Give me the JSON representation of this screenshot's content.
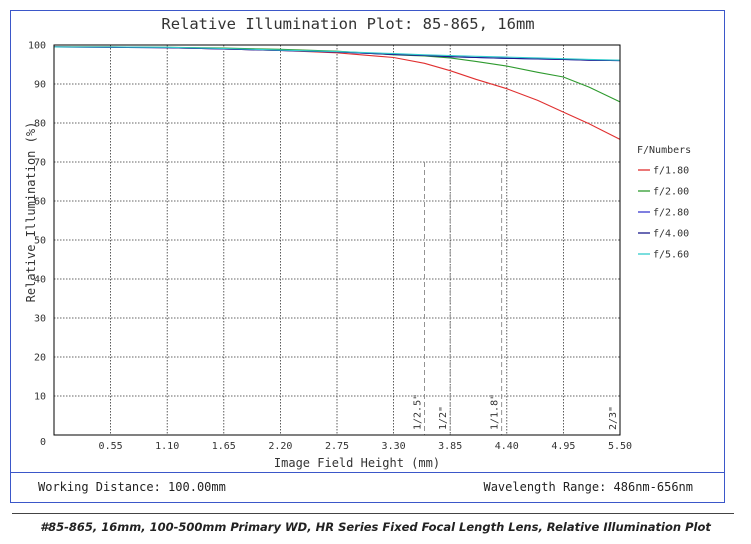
{
  "footer": {
    "working_distance": "Working Distance: 100.00mm",
    "wavelength_range": "Wavelength Range: 486nm-656nm"
  },
  "caption": "#85-865, 16mm, 100-500mm Primary WD, HR Series Fixed Focal Length Lens, Relative Illumination Plot",
  "chart_data": {
    "type": "line",
    "title": "Relative Illumination Plot: 85-865, 16mm",
    "xlabel": "Image Field Height (mm)",
    "ylabel": "Relative Illumination (%)",
    "xlim": [
      0,
      5.5
    ],
    "ylim": [
      0,
      100
    ],
    "x_ticks": [
      0.55,
      1.1,
      1.65,
      2.2,
      2.75,
      3.3,
      3.85,
      4.4,
      4.95,
      5.5
    ],
    "x_tick_labels": [
      "0.55",
      "1.10",
      "1.65",
      "2.20",
      "2.75",
      "3.30",
      "3.85",
      "4.40",
      "4.95",
      "5.50"
    ],
    "y_ticks": [
      10,
      20,
      30,
      40,
      50,
      60,
      70,
      80,
      90,
      100
    ],
    "y_tick_labels": [
      "10",
      "20",
      "30",
      "40",
      "50",
      "60",
      "70",
      "80",
      "90",
      "100"
    ],
    "origin_label": "0",
    "grid": true,
    "legend_title": "F/Numbers",
    "legend_position": "right",
    "sensor_markers": [
      {
        "label": "1/2.5\"",
        "x": 3.6
      },
      {
        "label": "1/2\"",
        "x": 3.85
      },
      {
        "label": "1/1.8\"",
        "x": 4.35
      },
      {
        "label": "2/3\"",
        "x": 5.5
      }
    ],
    "x": [
      0,
      0.55,
      1.1,
      1.65,
      2.2,
      2.75,
      3.3,
      3.6,
      3.85,
      4.1,
      4.4,
      4.7,
      4.95,
      5.2,
      5.5
    ],
    "series": [
      {
        "name": "f/1.80",
        "color": "#e03030",
        "values": [
          99.5,
          99.5,
          99.3,
          99.0,
          98.6,
          98.0,
          96.8,
          95.3,
          93.4,
          91.2,
          88.8,
          85.8,
          82.8,
          79.8,
          75.8
        ]
      },
      {
        "name": "f/2.00",
        "color": "#2e9a2e",
        "values": [
          99.5,
          99.5,
          99.4,
          99.2,
          98.9,
          98.4,
          97.5,
          97.2,
          96.7,
          95.8,
          94.6,
          93.0,
          91.8,
          89.2,
          85.4
        ]
      },
      {
        "name": "f/2.80",
        "color": "#3a3ad0",
        "values": [
          99.5,
          99.4,
          99.3,
          99.0,
          98.6,
          98.2,
          97.6,
          97.3,
          97.0,
          96.8,
          96.6,
          96.4,
          96.3,
          96.1,
          96.0
        ]
      },
      {
        "name": "f/4.00",
        "color": "#1a1a8c",
        "values": [
          99.5,
          99.4,
          99.3,
          99.0,
          98.6,
          98.2,
          97.6,
          97.3,
          97.0,
          96.8,
          96.6,
          96.4,
          96.3,
          96.1,
          96.0
        ]
      },
      {
        "name": "f/5.60",
        "color": "#33cccc",
        "values": [
          99.5,
          99.5,
          99.4,
          99.1,
          98.7,
          98.3,
          97.8,
          97.5,
          97.3,
          97.1,
          96.9,
          96.7,
          96.5,
          96.3,
          96.1
        ]
      }
    ]
  }
}
